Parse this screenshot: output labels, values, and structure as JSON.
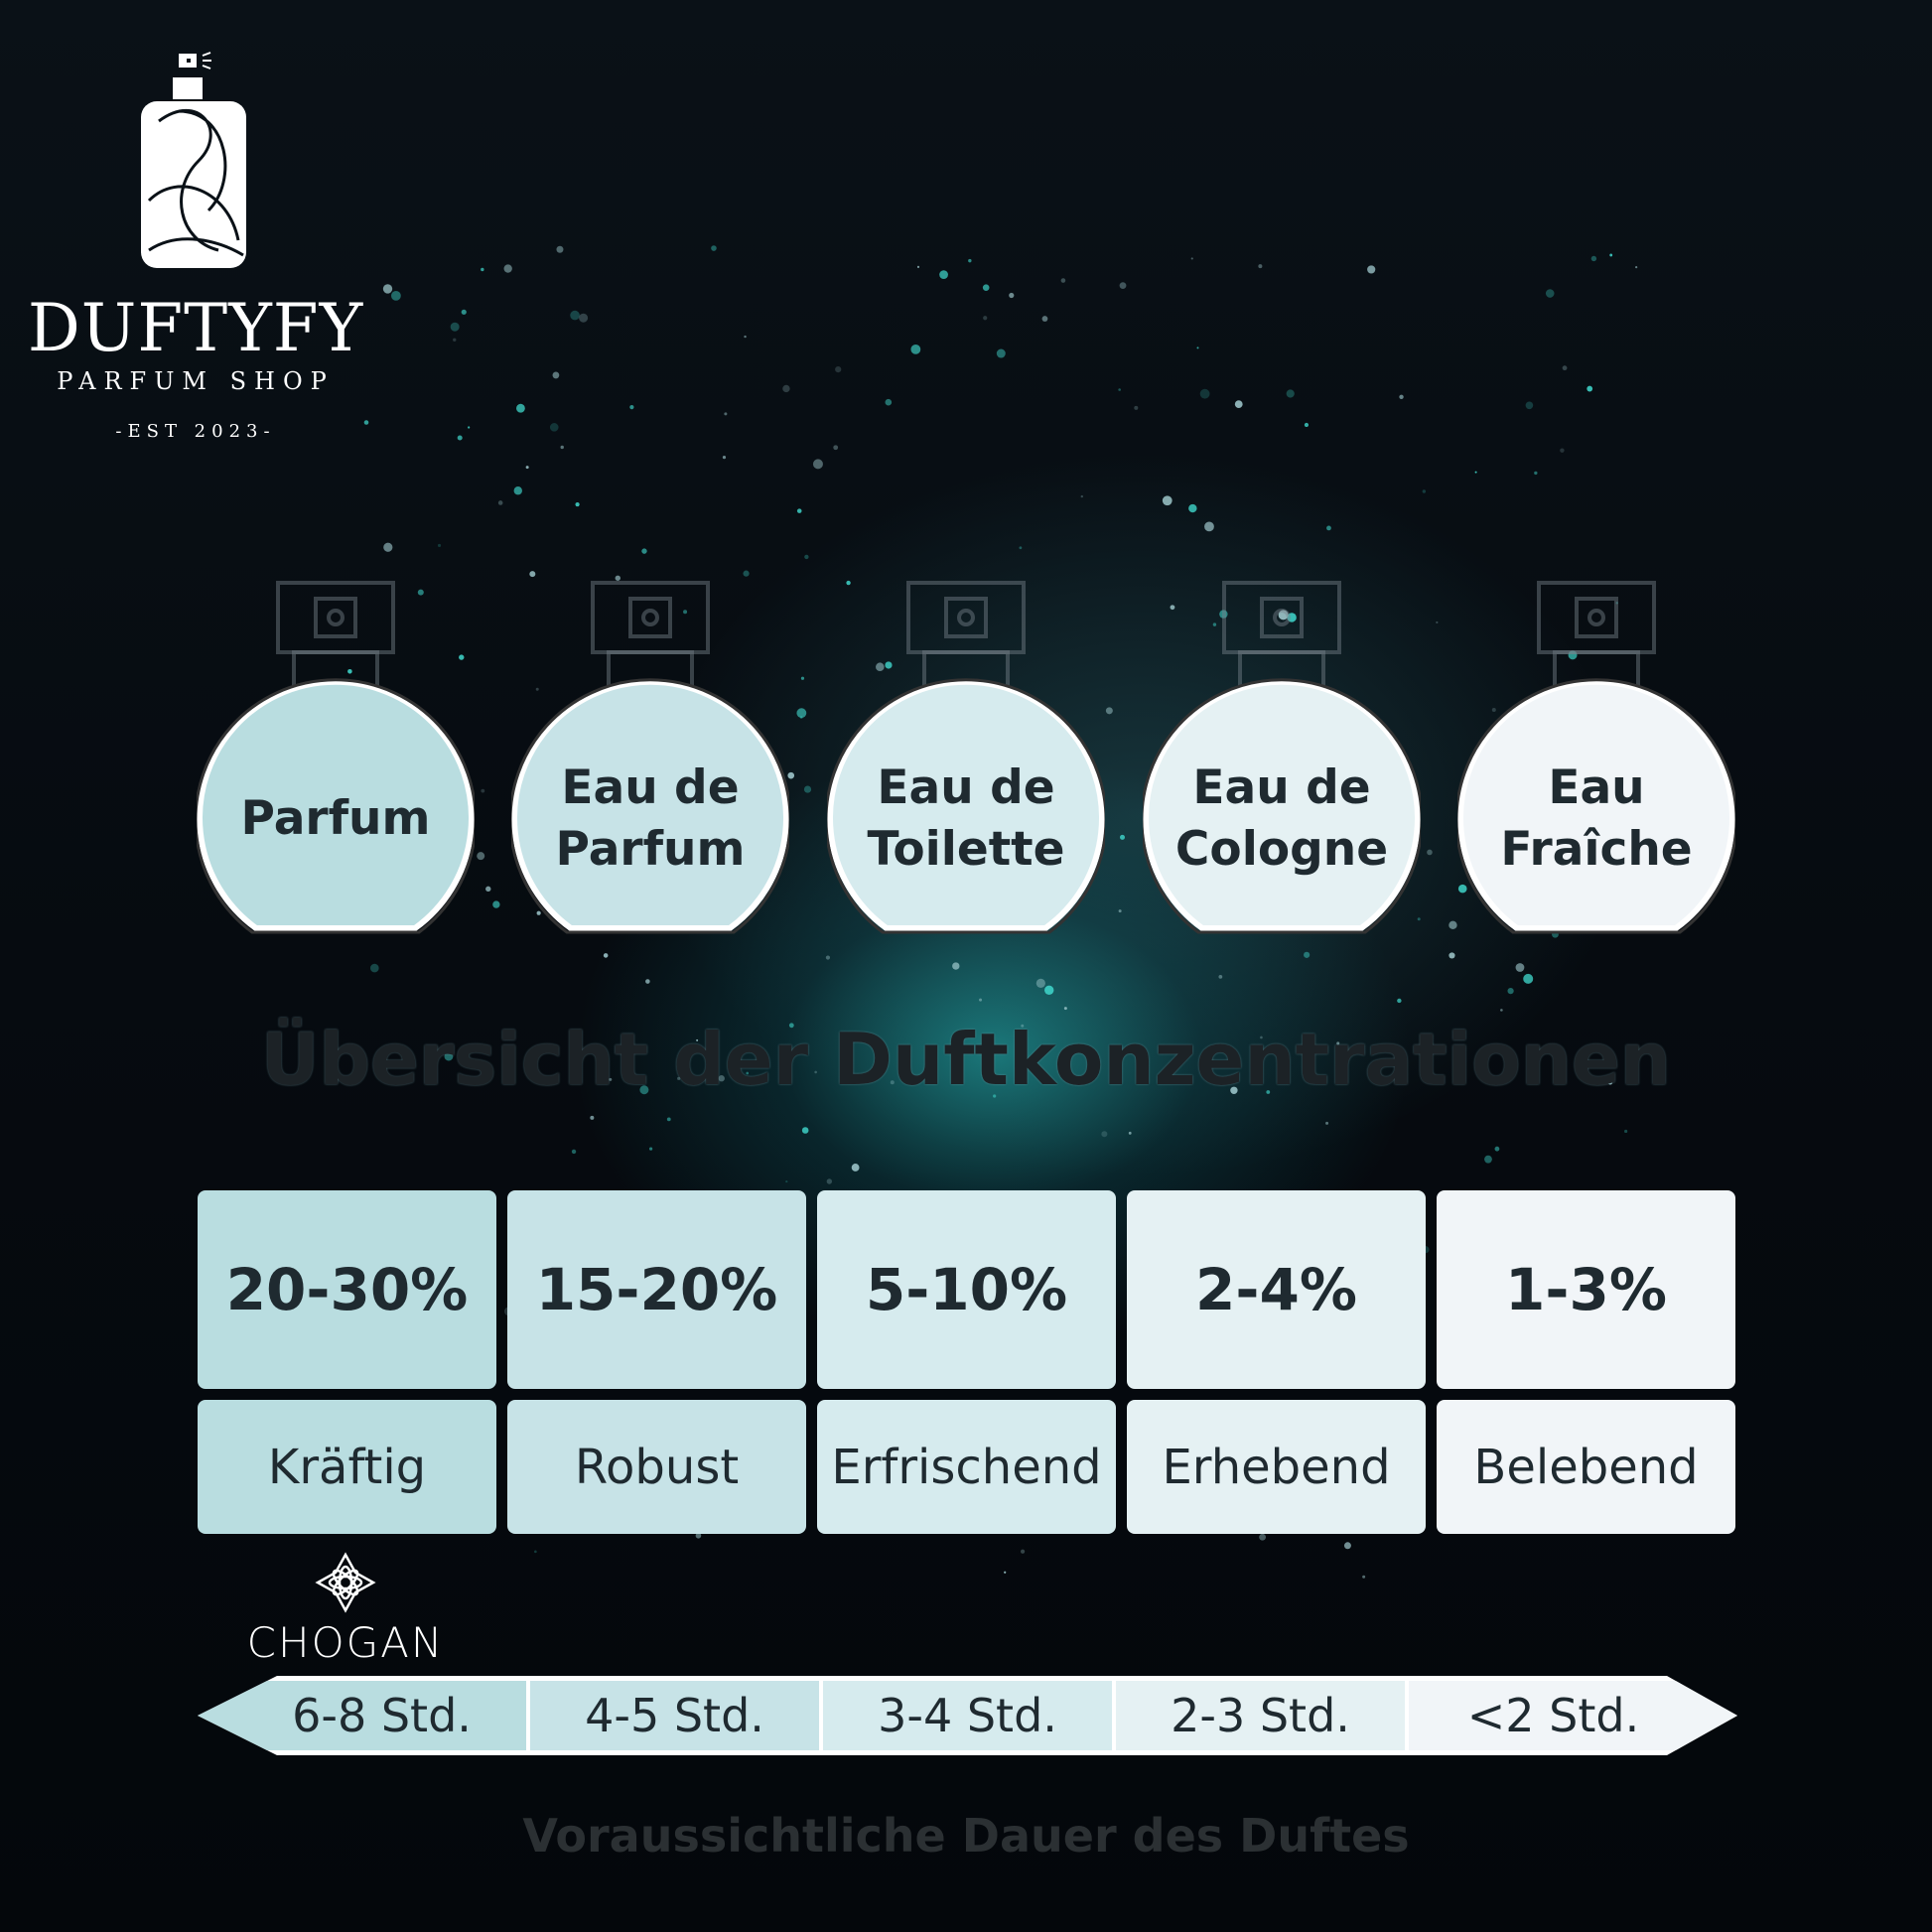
{
  "brand": {
    "name": "DUFTYFY",
    "subtitle": "PARFUM SHOP",
    "established": "-EST 2023-"
  },
  "title": "Übersicht der Duftkonzentrationen",
  "types": [
    {
      "label": "Parfum",
      "percent": "20-30%",
      "character": "Kräftig",
      "duration": "6-8 Std.",
      "color": "#b9dde0"
    },
    {
      "label": "Eau de Parfum",
      "percent": "15-20%",
      "character": "Robust",
      "duration": "4-5 Std.",
      "color": "#c7e3e7"
    },
    {
      "label": "Eau de Toilette",
      "percent": "5-10%",
      "character": "Erfrischend",
      "duration": "3-4 Std.",
      "color": "#d6ebee"
    },
    {
      "label": "Eau de Cologne",
      "percent": "2-4%",
      "character": "Erhebend",
      "duration": "2-3 Std.",
      "color": "#e5f1f3"
    },
    {
      "label": "Eau Fraîche",
      "percent": "1-3%",
      "character": "Belebend",
      "duration": "<2 Std.",
      "color": "#f1f5f8"
    }
  ],
  "partner_logo": {
    "name": "CHOGAN",
    "icon": "flower-icon"
  },
  "footer": "Voraussichtliche Dauer des Duftes"
}
